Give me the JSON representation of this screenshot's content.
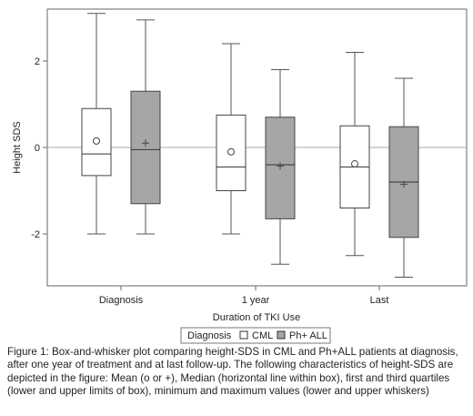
{
  "chart_data": {
    "type": "boxplot",
    "ylabel": "Height SDS",
    "xlabel": "Duration of TKI Use",
    "categories": [
      "Diagnosis",
      "1 year",
      "Last"
    ],
    "yticks": [
      -2,
      0,
      2
    ],
    "ylim": [
      -3.2,
      3.2
    ],
    "reference_line": 0,
    "legend": {
      "title": "Diagnosis",
      "placement": "bottom-center",
      "entries": [
        "CML",
        "Ph+ ALL"
      ]
    },
    "series": [
      {
        "name": "CML",
        "fill": "#ffffff",
        "mean_marker": "o",
        "boxes": [
          {
            "min": -2.0,
            "q1": -0.65,
            "median": -0.15,
            "q3": 0.9,
            "max": 3.1,
            "mean": 0.15
          },
          {
            "min": -2.0,
            "q1": -1.0,
            "median": -0.45,
            "q3": 0.75,
            "max": 2.4,
            "mean": -0.1
          },
          {
            "min": -2.5,
            "q1": -1.4,
            "median": -0.45,
            "q3": 0.5,
            "max": 2.2,
            "mean": -0.38
          }
        ]
      },
      {
        "name": "Ph+ ALL",
        "fill": "#a6a6a6",
        "mean_marker": "+",
        "boxes": [
          {
            "min": -2.0,
            "q1": -1.3,
            "median": -0.05,
            "q3": 1.3,
            "max": 2.95,
            "mean": 0.1
          },
          {
            "min": -2.7,
            "q1": -1.65,
            "median": -0.4,
            "q3": 0.7,
            "max": 1.8,
            "mean": -0.43
          },
          {
            "min": -3.0,
            "q1": -2.08,
            "median": -0.8,
            "q3": 0.48,
            "max": 1.6,
            "mean": -0.85
          }
        ]
      }
    ]
  },
  "caption": "Figure 1: Box-and-whisker plot comparing height-SDS in CML and Ph+ALL patients at diagnosis, after one year of treatment and at last follow-up. The following characteristics of height-SDS are depicted in the figure: Mean (o or +), Median (horizontal line within box), first and third quartiles (lower and upper limits of box), minimum and maximum values (lower and upper whiskers)"
}
